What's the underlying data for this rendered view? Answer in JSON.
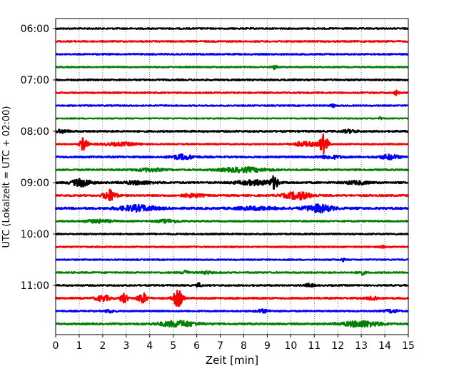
{
  "chart_data": {
    "type": "line",
    "title": "",
    "xlabel": "Zeit  [min]",
    "ylabel": "UTC (Lokalzeit = UTC + 02:00)",
    "xlim": [
      0,
      15
    ],
    "x_ticks": [
      0,
      1,
      2,
      3,
      4,
      5,
      6,
      7,
      8,
      9,
      10,
      11,
      12,
      13,
      14,
      15
    ],
    "grid": "vertical dotted at each minute",
    "trace_interval_min": 15,
    "y_tick_labels": [
      "06:00",
      "07:00",
      "08:00",
      "09:00",
      "10:00",
      "11:00"
    ],
    "series_colors": [
      "#000000",
      "#ff0000",
      "#0000ff",
      "#008000"
    ],
    "traces": [
      {
        "start": "06:00",
        "color": "#000000",
        "base": 0.9,
        "events": []
      },
      {
        "start": "06:15",
        "color": "#ff0000",
        "base": 0.9,
        "events": []
      },
      {
        "start": "06:30",
        "color": "#0000ff",
        "base": 0.9,
        "events": []
      },
      {
        "start": "06:45",
        "color": "#008000",
        "base": 0.8,
        "events": [
          {
            "t": 9.3,
            "amp": 3,
            "dur": 0.1
          }
        ]
      },
      {
        "start": "07:00",
        "color": "#000000",
        "base": 1.0,
        "events": []
      },
      {
        "start": "07:15",
        "color": "#ff0000",
        "base": 0.9,
        "events": [
          {
            "t": 14.5,
            "amp": 3,
            "dur": 0.1
          }
        ]
      },
      {
        "start": "07:30",
        "color": "#0000ff",
        "base": 0.8,
        "events": [
          {
            "t": 11.8,
            "amp": 2,
            "dur": 0.1
          }
        ]
      },
      {
        "start": "07:45",
        "color": "#008000",
        "base": 0.6,
        "events": [
          {
            "t": 13.8,
            "amp": 3,
            "dur": 0.05
          }
        ]
      },
      {
        "start": "08:00",
        "color": "#000000",
        "base": 1.1,
        "events": [
          {
            "t": 0.3,
            "amp": 2,
            "dur": 0.25
          },
          {
            "t": 12.5,
            "amp": 2,
            "dur": 0.3
          }
        ]
      },
      {
        "start": "08:15",
        "color": "#ff0000",
        "base": 0.8,
        "events": [
          {
            "t": 1.2,
            "amp": 10,
            "dur": 0.15
          },
          {
            "t": 11.4,
            "amp": 13,
            "dur": 0.18
          },
          {
            "t": 10.6,
            "amp": 3,
            "dur": 0.5
          },
          {
            "t": 2.8,
            "amp": 2,
            "dur": 0.8
          }
        ]
      },
      {
        "start": "08:30",
        "color": "#0000ff",
        "base": 1.1,
        "events": [
          {
            "t": 5.4,
            "amp": 3,
            "dur": 0.5
          },
          {
            "t": 14.2,
            "amp": 3,
            "dur": 0.4
          },
          {
            "t": 11.7,
            "amp": 2,
            "dur": 0.5
          }
        ]
      },
      {
        "start": "08:45",
        "color": "#008000",
        "base": 1.0,
        "events": [
          {
            "t": 8.0,
            "amp": 3,
            "dur": 1.0
          },
          {
            "t": 4.0,
            "amp": 2,
            "dur": 0.6
          }
        ]
      },
      {
        "start": "09:00",
        "color": "#000000",
        "base": 1.2,
        "events": [
          {
            "t": 1.1,
            "amp": 5,
            "dur": 0.4
          },
          {
            "t": 9.3,
            "amp": 8,
            "dur": 0.15
          },
          {
            "t": 8.5,
            "amp": 3,
            "dur": 0.8
          },
          {
            "t": 12.8,
            "amp": 2,
            "dur": 0.5
          },
          {
            "t": 3.5,
            "amp": 2,
            "dur": 0.6
          }
        ]
      },
      {
        "start": "09:15",
        "color": "#ff0000",
        "base": 1.1,
        "events": [
          {
            "t": 2.3,
            "amp": 8,
            "dur": 0.25
          },
          {
            "t": 10.3,
            "amp": 5,
            "dur": 0.6
          },
          {
            "t": 5.8,
            "amp": 2,
            "dur": 0.5
          }
        ]
      },
      {
        "start": "09:30",
        "color": "#0000ff",
        "base": 1.3,
        "events": [
          {
            "t": 3.5,
            "amp": 4,
            "dur": 0.8
          },
          {
            "t": 11.2,
            "amp": 5,
            "dur": 0.6
          },
          {
            "t": 8.5,
            "amp": 2,
            "dur": 0.8
          }
        ]
      },
      {
        "start": "09:45",
        "color": "#008000",
        "base": 0.9,
        "events": [
          {
            "t": 1.8,
            "amp": 2,
            "dur": 0.6
          },
          {
            "t": 4.8,
            "amp": 2,
            "dur": 0.5
          }
        ]
      },
      {
        "start": "10:00",
        "color": "#000000",
        "base": 0.9,
        "events": []
      },
      {
        "start": "10:15",
        "color": "#ff0000",
        "base": 0.8,
        "events": [
          {
            "t": 13.9,
            "amp": 2,
            "dur": 0.1
          }
        ]
      },
      {
        "start": "10:30",
        "color": "#0000ff",
        "base": 0.8,
        "events": [
          {
            "t": 12.2,
            "amp": 2,
            "dur": 0.1
          }
        ]
      },
      {
        "start": "10:45",
        "color": "#008000",
        "base": 0.9,
        "events": [
          {
            "t": 5.5,
            "amp": 5,
            "dur": 0.1
          },
          {
            "t": 13.0,
            "amp": 3,
            "dur": 0.15
          },
          {
            "t": 6.4,
            "amp": 2,
            "dur": 0.2
          }
        ]
      },
      {
        "start": "11:00",
        "color": "#000000",
        "base": 0.9,
        "events": [
          {
            "t": 6.1,
            "amp": 3,
            "dur": 0.1
          },
          {
            "t": 10.8,
            "amp": 2,
            "dur": 0.2
          }
        ]
      },
      {
        "start": "11:15",
        "color": "#ff0000",
        "base": 1.1,
        "events": [
          {
            "t": 2.0,
            "amp": 4,
            "dur": 0.3
          },
          {
            "t": 2.9,
            "amp": 7,
            "dur": 0.15
          },
          {
            "t": 3.7,
            "amp": 7,
            "dur": 0.2
          },
          {
            "t": 5.2,
            "amp": 11,
            "dur": 0.2
          },
          {
            "t": 13.5,
            "amp": 3,
            "dur": 0.2
          }
        ]
      },
      {
        "start": "11:30",
        "color": "#0000ff",
        "base": 0.9,
        "events": [
          {
            "t": 2.3,
            "amp": 2,
            "dur": 0.2
          },
          {
            "t": 8.8,
            "amp": 2,
            "dur": 0.3
          },
          {
            "t": 14.3,
            "amp": 2,
            "dur": 0.3
          }
        ]
      },
      {
        "start": "11:45",
        "color": "#008000",
        "base": 1.1,
        "events": [
          {
            "t": 5.2,
            "amp": 4,
            "dur": 0.8
          },
          {
            "t": 13.0,
            "amp": 4,
            "dur": 0.8
          }
        ]
      }
    ]
  }
}
